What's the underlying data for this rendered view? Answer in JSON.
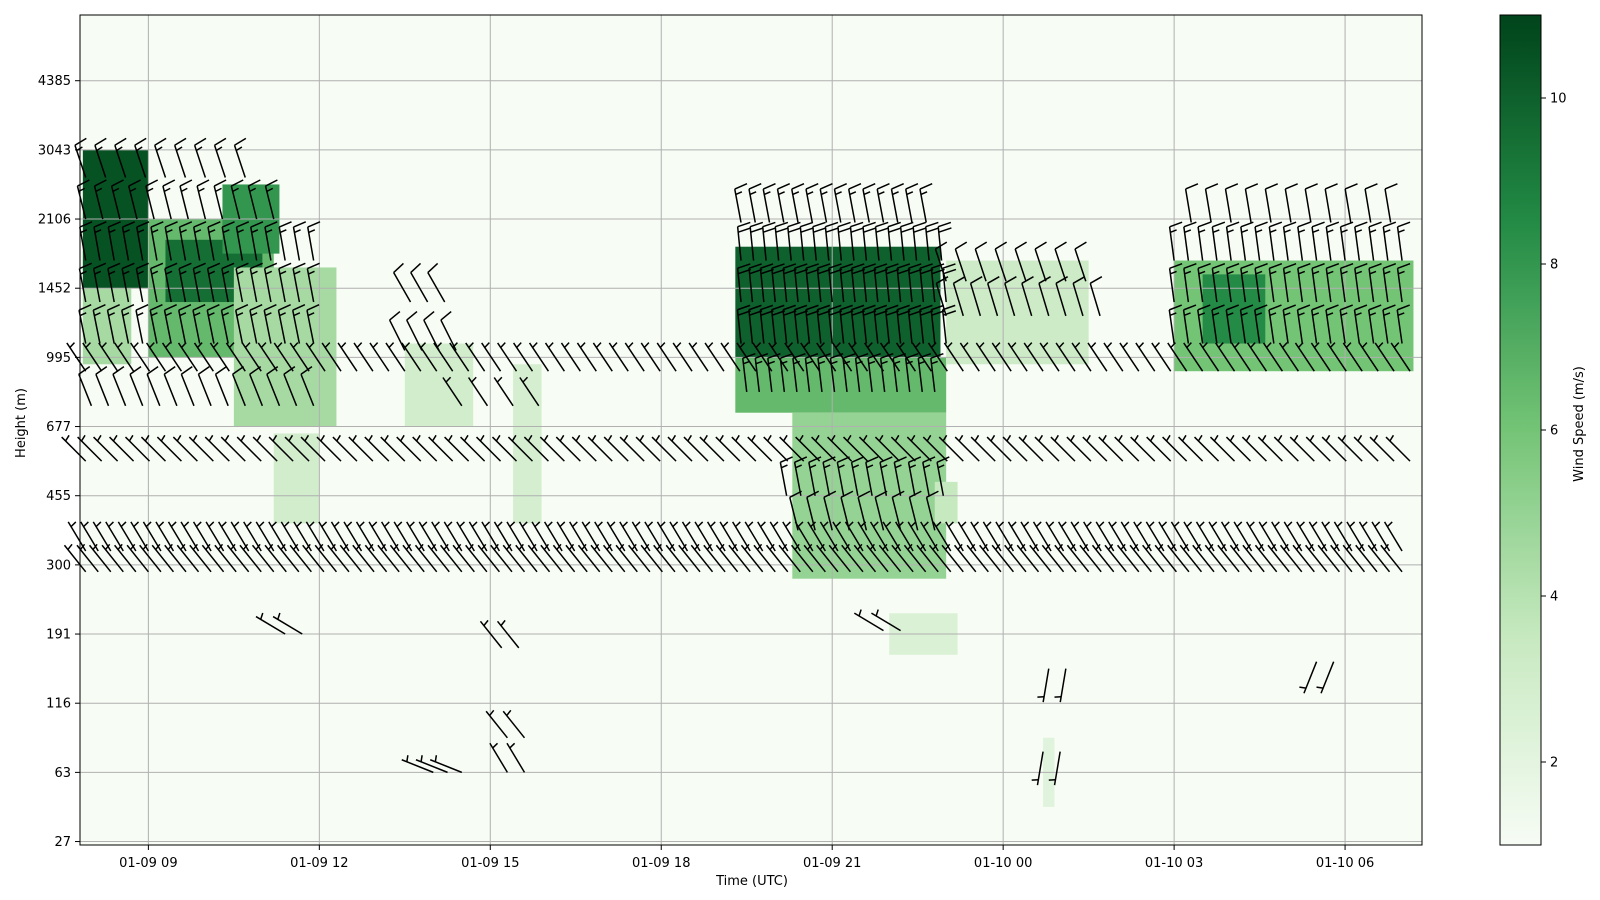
{
  "chart_data": {
    "type": "heatmap",
    "title": "",
    "xlabel": "Time (UTC)",
    "ylabel": "Height (m)",
    "colorbar_label": "Wind Speed (m/s)",
    "colormap": "Greens",
    "colors": {
      "low": "#f7fcf5",
      "mid": "#74c476",
      "high": "#00441b",
      "barb": "#000000",
      "grid": "#b0b0b0"
    },
    "grid": true,
    "x_ticks": [
      "01-09 09",
      "01-09 12",
      "01-09 15",
      "01-09 18",
      "01-09 21",
      "01-10 00",
      "01-10 03",
      "01-10 06"
    ],
    "x_tick_hours": [
      9,
      12,
      15,
      18,
      21,
      24,
      27,
      30
    ],
    "x_range_hours": [
      7.8,
      31.35
    ],
    "y_ticks": [
      "4385",
      "3043",
      "2106",
      "1452",
      "995",
      "677",
      "455",
      "300",
      "191",
      "116",
      "63",
      "27"
    ],
    "y_tick_levels": [
      11,
      10,
      9,
      8,
      7,
      6,
      5,
      4,
      3,
      2,
      1,
      0
    ],
    "y_range_levels": [
      -0.05,
      11.95
    ],
    "colorbar_ticks": [
      2,
      4,
      6,
      8,
      10
    ],
    "colorbar_range": [
      1,
      11
    ],
    "regions": [
      {
        "t0": 7.85,
        "t1": 9.0,
        "z0": 8.0,
        "z1": 10.0,
        "speed": 10.5
      },
      {
        "t0": 7.85,
        "t1": 8.7,
        "z0": 6.9,
        "z1": 8.0,
        "speed": 4.5
      },
      {
        "t0": 9.0,
        "t1": 11.2,
        "z0": 7.0,
        "z1": 9.0,
        "speed": 6.5
      },
      {
        "t0": 9.3,
        "t1": 11.0,
        "z0": 7.8,
        "z1": 8.7,
        "speed": 9.5
      },
      {
        "t0": 10.3,
        "t1": 11.3,
        "z0": 8.5,
        "z1": 9.5,
        "speed": 8.0
      },
      {
        "t0": 10.5,
        "t1": 12.3,
        "z0": 6.0,
        "z1": 8.3,
        "speed": 4.5
      },
      {
        "t0": 11.2,
        "t1": 12.0,
        "z0": 4.6,
        "z1": 5.9,
        "speed": 3.0
      },
      {
        "t0": 13.5,
        "t1": 14.7,
        "z0": 6.0,
        "z1": 7.2,
        "speed": 3.0
      },
      {
        "t0": 15.4,
        "t1": 15.9,
        "z0": 4.6,
        "z1": 6.9,
        "speed": 2.8
      },
      {
        "t0": 19.3,
        "t1": 22.9,
        "z0": 7.0,
        "z1": 8.6,
        "speed": 10.0
      },
      {
        "t0": 19.3,
        "t1": 23.0,
        "z0": 6.2,
        "z1": 7.0,
        "speed": 6.5
      },
      {
        "t0": 20.3,
        "t1": 23.0,
        "z0": 3.8,
        "z1": 6.2,
        "speed": 5.0
      },
      {
        "t0": 22.8,
        "t1": 23.2,
        "z0": 4.6,
        "z1": 5.2,
        "speed": 3.5
      },
      {
        "t0": 23.0,
        "t1": 25.5,
        "z0": 6.9,
        "z1": 8.4,
        "speed": 3.2
      },
      {
        "t0": 27.0,
        "t1": 31.2,
        "z0": 6.8,
        "z1": 8.4,
        "speed": 6.0
      },
      {
        "t0": 27.5,
        "t1": 28.6,
        "z0": 7.2,
        "z1": 8.2,
        "speed": 8.5
      },
      {
        "t0": 22.0,
        "t1": 23.2,
        "z0": 2.7,
        "z1": 3.3,
        "speed": 2.5
      },
      {
        "t0": 24.7,
        "t1": 24.9,
        "z0": 0.5,
        "z1": 1.5,
        "speed": 2.2
      }
    ],
    "barb_rows": [
      {
        "z": 4.2,
        "t0": 7.9,
        "t1": 31.2,
        "dt": 0.22,
        "u": 3,
        "v": -5
      },
      {
        "z": 3.9,
        "t0": 7.9,
        "t1": 31.2,
        "dt": 0.22,
        "u": 4,
        "v": -5
      },
      {
        "z": 5.5,
        "t0": 7.9,
        "t1": 31.2,
        "dt": 0.28,
        "u": 5,
        "v": -5
      },
      {
        "z": 6.8,
        "t0": 7.9,
        "t1": 31.2,
        "dt": 0.28,
        "u": 4,
        "v": -6
      },
      {
        "z": 7.2,
        "t0": 7.9,
        "t1": 12.0,
        "dt": 0.25,
        "u": 3,
        "v": -15
      },
      {
        "z": 7.8,
        "t0": 7.9,
        "t1": 12.0,
        "dt": 0.25,
        "u": 3,
        "v": -16
      },
      {
        "z": 8.4,
        "t0": 7.9,
        "t1": 12.0,
        "dt": 0.25,
        "u": 3,
        "v": -17
      },
      {
        "z": 9.0,
        "t0": 7.9,
        "t1": 11.2,
        "dt": 0.3,
        "u": 4,
        "v": -16
      },
      {
        "z": 9.6,
        "t0": 7.9,
        "t1": 11.0,
        "dt": 0.35,
        "u": 4,
        "v": -12
      },
      {
        "z": 6.3,
        "t0": 8.0,
        "t1": 12.0,
        "dt": 0.3,
        "u": 4,
        "v": -10
      },
      {
        "z": 7.2,
        "t0": 19.4,
        "t1": 23.0,
        "dt": 0.2,
        "u": 2,
        "v": -19
      },
      {
        "z": 7.8,
        "t0": 19.4,
        "t1": 23.0,
        "dt": 0.2,
        "u": 2,
        "v": -20
      },
      {
        "z": 8.4,
        "t0": 19.4,
        "t1": 23.0,
        "dt": 0.22,
        "u": 2,
        "v": -20
      },
      {
        "z": 8.95,
        "t0": 19.4,
        "t1": 22.7,
        "dt": 0.25,
        "u": 3,
        "v": -16
      },
      {
        "z": 6.5,
        "t0": 19.5,
        "t1": 23.0,
        "dt": 0.22,
        "u": 2,
        "v": -17
      },
      {
        "z": 5.0,
        "t0": 20.2,
        "t1": 23.0,
        "dt": 0.25,
        "u": 3,
        "v": -16
      },
      {
        "z": 4.5,
        "t0": 20.4,
        "t1": 23.0,
        "dt": 0.3,
        "u": 3,
        "v": -12
      },
      {
        "z": 7.6,
        "t0": 23.0,
        "t1": 25.7,
        "dt": 0.3,
        "u": 3,
        "v": -10
      },
      {
        "z": 8.1,
        "t0": 23.0,
        "t1": 25.5,
        "dt": 0.35,
        "u": 3,
        "v": -9
      },
      {
        "z": 7.2,
        "t0": 27.0,
        "t1": 31.2,
        "dt": 0.25,
        "u": 2,
        "v": -14
      },
      {
        "z": 7.8,
        "t0": 27.0,
        "t1": 31.2,
        "dt": 0.25,
        "u": 2,
        "v": -15
      },
      {
        "z": 8.4,
        "t0": 27.0,
        "t1": 31.2,
        "dt": 0.25,
        "u": 2,
        "v": -15
      },
      {
        "z": 8.95,
        "t0": 27.3,
        "t1": 30.8,
        "dt": 0.35,
        "u": 2,
        "v": -12
      },
      {
        "z": 7.1,
        "t0": 13.5,
        "t1": 14.6,
        "dt": 0.3,
        "u": 4,
        "v": -8
      },
      {
        "z": 7.8,
        "t0": 13.6,
        "t1": 14.4,
        "dt": 0.3,
        "u": 4,
        "v": -7
      },
      {
        "z": 6.3,
        "t0": 14.5,
        "t1": 15.9,
        "dt": 0.45,
        "u": 4,
        "v": -6
      },
      {
        "z": 3.0,
        "t0": 11.4,
        "t1": 11.9,
        "dt": 0.3,
        "u": 5,
        "v": -3
      },
      {
        "z": 2.8,
        "t0": 15.2,
        "t1": 15.5,
        "dt": 0.3,
        "u": 4,
        "v": -5
      },
      {
        "z": 3.05,
        "t0": 21.9,
        "t1": 22.4,
        "dt": 0.3,
        "u": 5,
        "v": -3
      },
      {
        "z": 1.0,
        "t0": 14.0,
        "t1": 14.5,
        "dt": 0.25,
        "u": 5,
        "v": -2
      },
      {
        "z": 1.0,
        "t0": 15.3,
        "t1": 15.6,
        "dt": 0.3,
        "u": 3,
        "v": -5
      },
      {
        "z": 1.5,
        "t0": 15.3,
        "t1": 15.6,
        "dt": 0.3,
        "u": 4,
        "v": -5
      },
      {
        "z": 1.3,
        "t0": 24.7,
        "t1": 25.0,
        "dt": 0.3,
        "u": 1,
        "v": 6
      },
      {
        "z": 2.5,
        "t0": 24.8,
        "t1": 25.1,
        "dt": 0.3,
        "u": 1,
        "v": 6
      },
      {
        "z": 2.6,
        "t0": 29.5,
        "t1": 29.8,
        "dt": 0.3,
        "u": 2,
        "v": 5
      }
    ]
  }
}
